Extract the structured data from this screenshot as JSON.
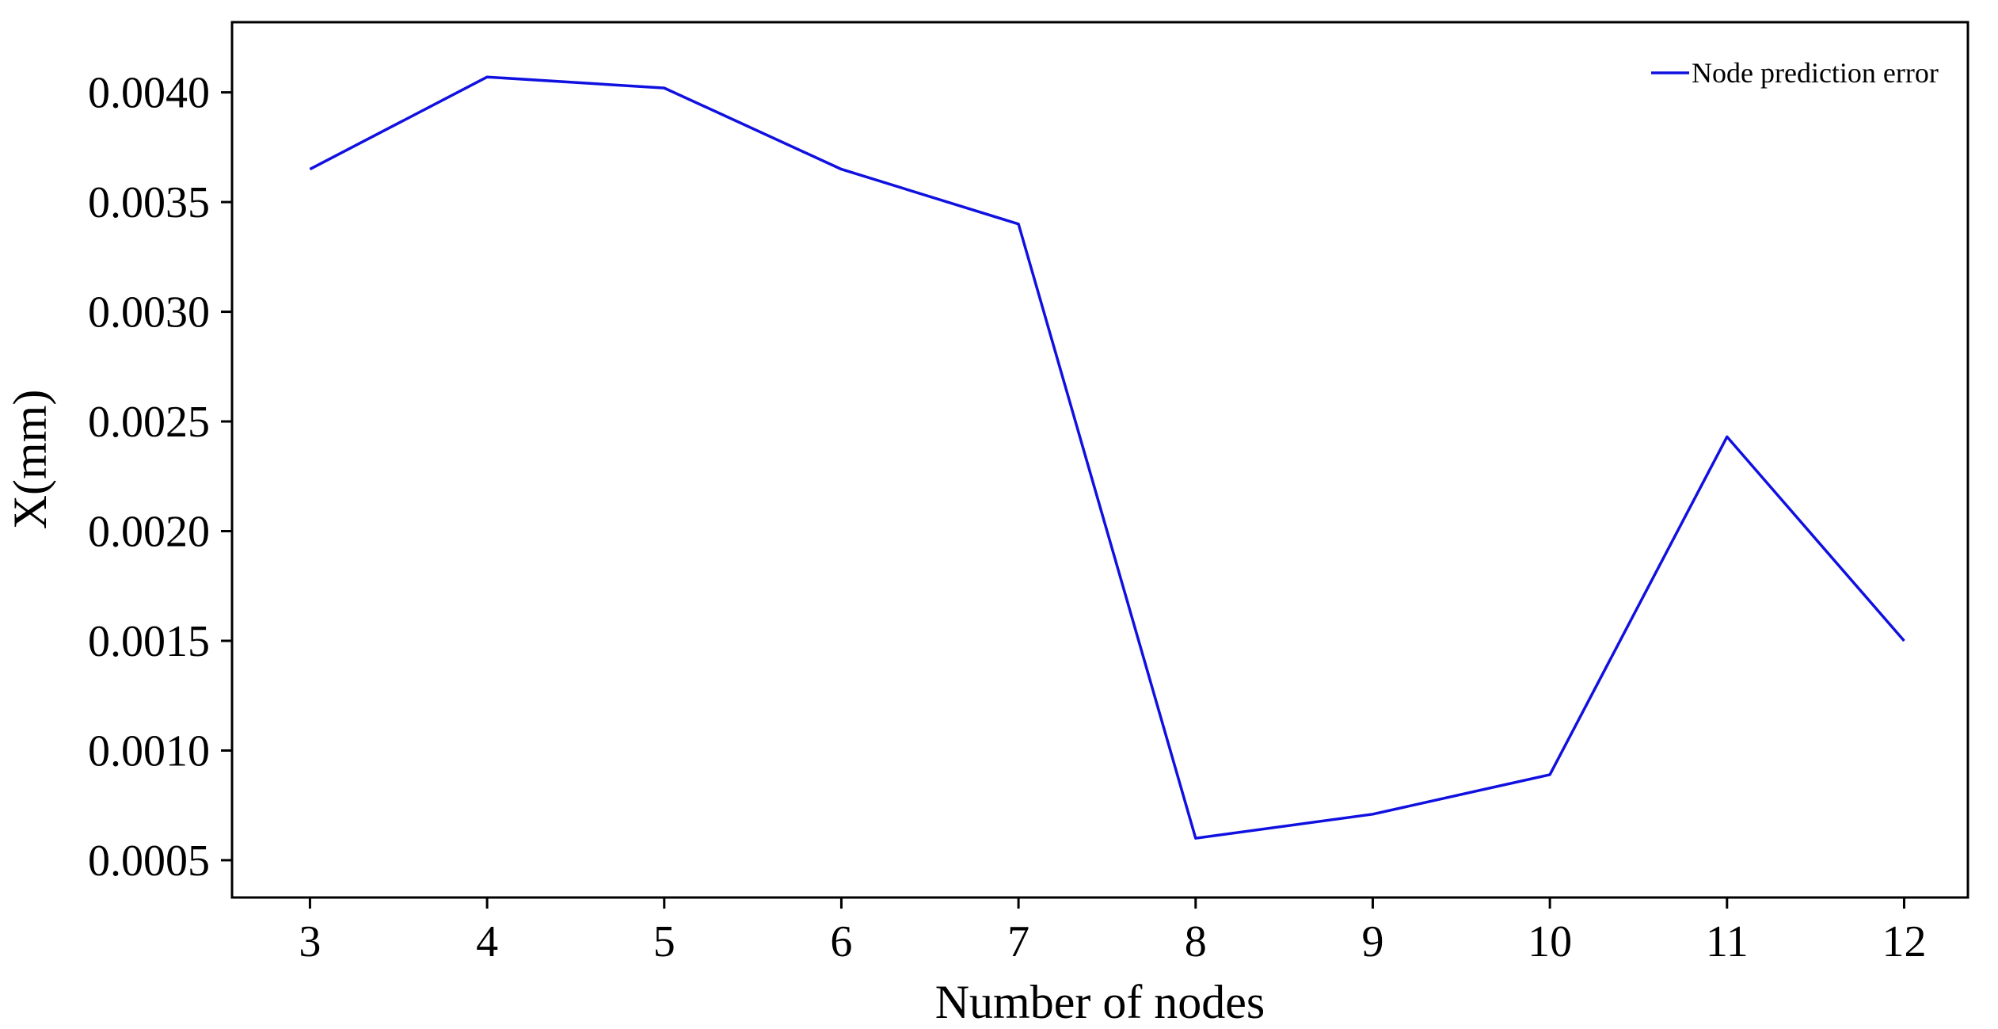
{
  "chart_data": {
    "type": "line",
    "x": [
      3,
      4,
      5,
      6,
      7,
      8,
      9,
      10,
      11,
      12
    ],
    "series": [
      {
        "name": "Node prediction error",
        "color": "#1010e0",
        "values": [
          0.00365,
          0.00407,
          0.00402,
          0.00365,
          0.0034,
          0.0006,
          0.00071,
          0.00089,
          0.00243,
          0.0015
        ]
      }
    ],
    "xlabel": "Number of nodes",
    "ylabel": "X(mm)",
    "xticks": [
      "3",
      "4",
      "5",
      "6",
      "7",
      "8",
      "9",
      "10",
      "11",
      "12"
    ],
    "yticks": [
      "0.0005",
      "0.0010",
      "0.0015",
      "0.0020",
      "0.0025",
      "0.0030",
      "0.0035",
      "0.0040"
    ],
    "xlim": [
      2.56,
      12.36
    ],
    "ylim": [
      0.00033,
      0.00432
    ],
    "grid": false,
    "legend_position": "top-right"
  }
}
